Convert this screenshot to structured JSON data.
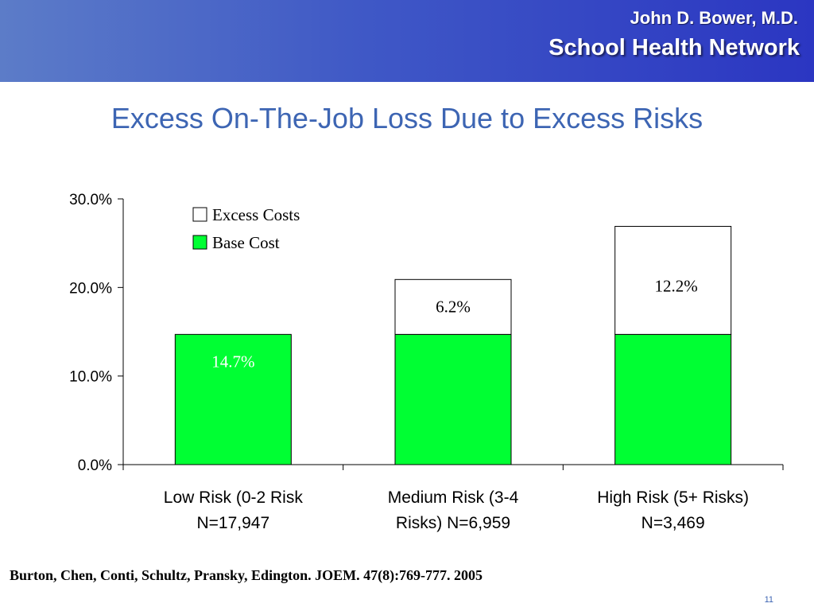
{
  "header": {
    "author": "John D. Bower, M.D.",
    "organization": "School Health Network",
    "colors": {
      "gradient_left": "#5c7cc8",
      "gradient_right": "#2b36c2",
      "text": "#ffffff"
    }
  },
  "slide_title": "Excess On-The-Job Loss Due to Excess Risks",
  "chart_data": {
    "type": "bar",
    "stacked": true,
    "categories": [
      [
        "Low Risk (0-2 Risk",
        "N=17,947"
      ],
      [
        "Medium Risk (3-4",
        "Risks) N=6,959"
      ],
      [
        "High Risk (5+ Risks)",
        "N=3,469"
      ]
    ],
    "series": [
      {
        "name": "Base Cost",
        "values": [
          14.7,
          14.7,
          14.7
        ],
        "color": "#00ff33",
        "data_labels": [
          "14.7%",
          "",
          ""
        ],
        "label_color": "#ffffff"
      },
      {
        "name": "Excess Costs",
        "values": [
          0,
          6.2,
          12.2
        ],
        "color": "#ffffff",
        "data_labels": [
          "",
          "6.2%",
          "12.2%"
        ],
        "label_color": "#000000"
      }
    ],
    "ylim": [
      0,
      30
    ],
    "yticks": [
      "0.0%",
      "10.0%",
      "20.0%",
      "30.0%"
    ],
    "ytick_values": [
      0,
      10,
      20,
      30
    ],
    "legend": {
      "placement": "top-left",
      "entries": [
        {
          "label": "Excess Costs",
          "color": "#ffffff"
        },
        {
          "label": "Base Cost",
          "color": "#00ff33"
        }
      ]
    },
    "grid": false
  },
  "citation": "Burton, Chen, Conti, Schultz, Pransky, Edington. JOEM. 47(8):769-777. 2005",
  "page_number": "11"
}
